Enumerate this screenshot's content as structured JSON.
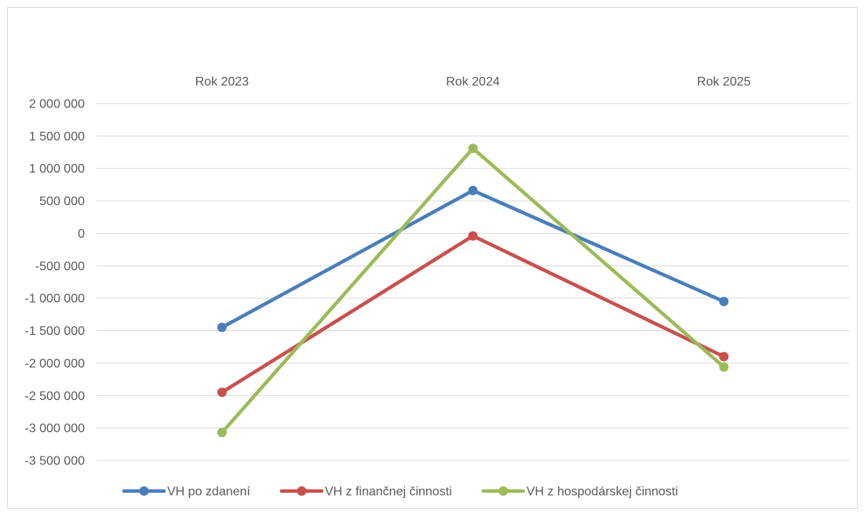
{
  "chart_data": {
    "type": "line",
    "title": "",
    "xlabel": "",
    "ylabel": "",
    "categories": [
      "Rok 2023",
      "Rok 2024",
      "Rok 2025"
    ],
    "x_axis_position": "top",
    "ylim": [
      -3500000,
      2000000
    ],
    "y_ticks": [
      2000000,
      1500000,
      1000000,
      500000,
      0,
      -500000,
      -1000000,
      -1500000,
      -2000000,
      -2500000,
      -3000000,
      -3500000
    ],
    "y_tick_labels": [
      "2 000 000",
      "1 500 000",
      "1 000 000",
      "500 000",
      "0",
      "-500 000",
      "-1 000 000",
      "-1 500 000",
      "-2 000 000",
      "-2 500 000",
      "-3 000 000",
      "-3 500 000"
    ],
    "grid": true,
    "legend_position": "bottom",
    "series": [
      {
        "name": "VH po zdanení",
        "color": "#4a7ebb",
        "values": [
          -1450000,
          660000,
          -1050000
        ]
      },
      {
        "name": "VH z finančnej činnosti",
        "color": "#c9504d",
        "values": [
          -2450000,
          -40000,
          -1900000
        ]
      },
      {
        "name": "VH z hospodárskej činnosti",
        "color": "#9bbb59",
        "values": [
          -3070000,
          1310000,
          -2060000
        ]
      }
    ]
  }
}
